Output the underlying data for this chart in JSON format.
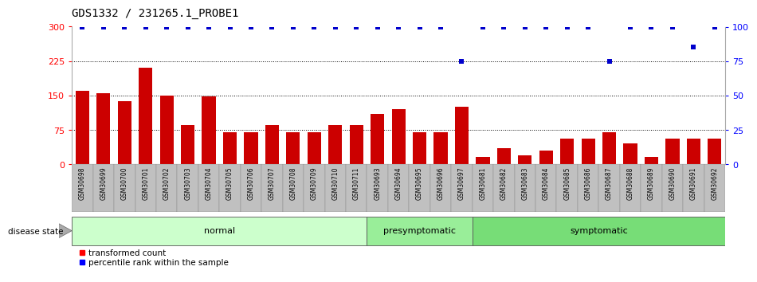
{
  "title": "GDS1332 / 231265.1_PROBE1",
  "categories": [
    "GSM30698",
    "GSM30699",
    "GSM30700",
    "GSM30701",
    "GSM30702",
    "GSM30703",
    "GSM30704",
    "GSM30705",
    "GSM30706",
    "GSM30707",
    "GSM30708",
    "GSM30709",
    "GSM30710",
    "GSM30711",
    "GSM30693",
    "GSM30694",
    "GSM30695",
    "GSM30696",
    "GSM30697",
    "GSM30681",
    "GSM30682",
    "GSM30683",
    "GSM30684",
    "GSM30685",
    "GSM30686",
    "GSM30687",
    "GSM30688",
    "GSM30689",
    "GSM30690",
    "GSM30691",
    "GSM30692"
  ],
  "bar_values": [
    160,
    155,
    138,
    210,
    150,
    85,
    147,
    70,
    70,
    85,
    70,
    70,
    85,
    85,
    110,
    120,
    70,
    70,
    125,
    15,
    35,
    20,
    30,
    55,
    55,
    70,
    45,
    15,
    55,
    55,
    55
  ],
  "percentile_values": [
    100,
    100,
    100,
    100,
    100,
    100,
    100,
    100,
    100,
    100,
    100,
    100,
    100,
    100,
    100,
    100,
    100,
    100,
    75,
    100,
    100,
    100,
    100,
    100,
    100,
    75,
    100,
    100,
    100,
    85,
    100
  ],
  "groups": [
    {
      "name": "normal",
      "start": 0,
      "end": 14,
      "color": "#ccffcc"
    },
    {
      "name": "presymptomatic",
      "start": 14,
      "end": 19,
      "color": "#99ee99"
    },
    {
      "name": "symptomatic",
      "start": 19,
      "end": 31,
      "color": "#77dd77"
    }
  ],
  "bar_color": "#cc0000",
  "percentile_color": "#0000cc",
  "ylim_left": [
    0,
    300
  ],
  "ylim_right": [
    0,
    100
  ],
  "yticks_left": [
    0,
    75,
    150,
    225,
    300
  ],
  "yticks_right": [
    0,
    25,
    50,
    75,
    100
  ],
  "grid_lines": [
    75,
    150,
    225
  ],
  "background_color": "#ffffff",
  "title_fontsize": 10,
  "label_fontsize": 5.5,
  "group_fontsize": 8,
  "legend_fontsize": 7.5
}
